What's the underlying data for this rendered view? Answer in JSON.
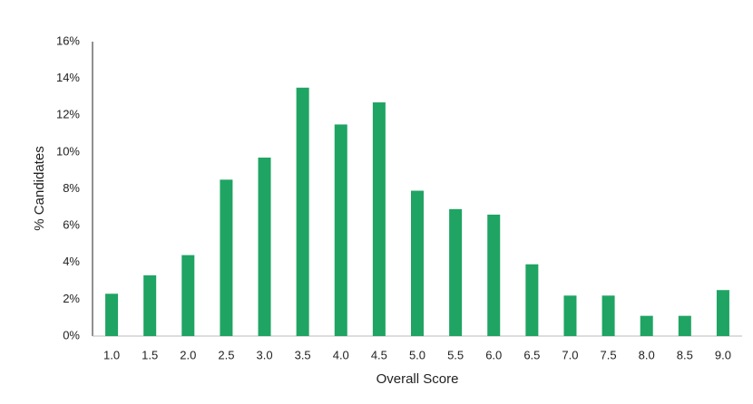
{
  "chart_data": {
    "type": "bar",
    "categories": [
      "1.0",
      "1.5",
      "2.0",
      "2.5",
      "3.0",
      "3.5",
      "4.0",
      "4.5",
      "5.0",
      "5.5",
      "6.0",
      "6.5",
      "7.0",
      "7.5",
      "8.0",
      "8.5",
      "9.0"
    ],
    "values": [
      2.3,
      3.3,
      4.4,
      8.5,
      9.7,
      13.5,
      11.5,
      12.7,
      7.9,
      6.9,
      6.6,
      3.9,
      2.2,
      2.2,
      1.1,
      1.1,
      2.5
    ],
    "color": "#1fa463",
    "x_label": "Overall Score",
    "y_label": "% Candidates",
    "ylim": [
      0,
      16
    ],
    "yticks": [
      {
        "value": 0,
        "label": "0%"
      },
      {
        "value": 2,
        "label": "2%"
      },
      {
        "value": 4,
        "label": "4%"
      },
      {
        "value": 6,
        "label": "6%"
      },
      {
        "value": 8,
        "label": "8%"
      },
      {
        "value": 10,
        "label": "10%"
      },
      {
        "value": 12,
        "label": "12%"
      },
      {
        "value": 14,
        "label": "14%"
      },
      {
        "value": 16,
        "label": "16%"
      }
    ],
    "grid": false
  }
}
